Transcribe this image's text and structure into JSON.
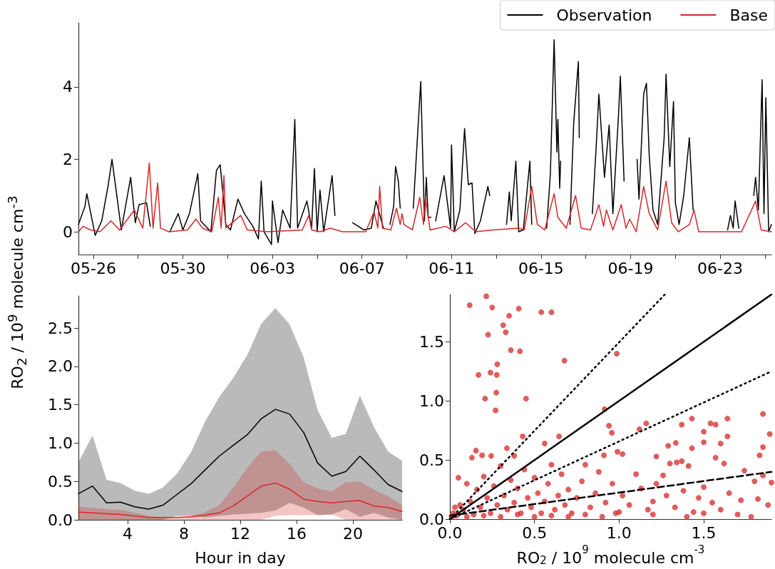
{
  "chart_data": [
    {
      "type": "line",
      "ylabel": "RO$_{2}$ / 10$^{9}$ molecule cm$^{-3}$",
      "legend": "top right",
      "xlim": [
        "--05-25T08:00",
        "--06-25T07:00"
      ],
      "ylim": [
        -0.63,
        5.77
      ],
      "yticks": [
        0,
        2,
        4
      ],
      "xticks": [
        {
          "value": "--05-26",
          "label": "05-26"
        },
        {
          "value": "--05-28",
          "label": null
        },
        {
          "value": "--05-30",
          "label": "05-30"
        },
        {
          "value": "--06-01",
          "label": null
        },
        {
          "value": "--06-03",
          "label": "06-03"
        },
        {
          "value": "--06-05",
          "label": null
        },
        {
          "value": "--06-07",
          "label": "06-07"
        },
        {
          "value": "--06-09",
          "label": null
        },
        {
          "value": "--06-11",
          "label": "06-11"
        },
        {
          "value": "--06-13",
          "label": null
        },
        {
          "value": "--06-15",
          "label": "06-15"
        },
        {
          "value": "--06-17",
          "label": null
        },
        {
          "value": "--06-19",
          "label": "06-19"
        },
        {
          "value": "--06-21",
          "label": null
        },
        {
          "value": "--06-23",
          "label": "06-23"
        },
        {
          "value": "--06-25",
          "label": null
        }
      ],
      "series": [
        {
          "name": "Observation",
          "color": "#000000",
          "x": [
            "--05-25T08:00",
            "--05-25T15:00",
            "--05-25T17:00",
            "--05-26T02:00",
            "--05-26T09:00",
            "--05-26T16:00",
            "--05-26T20:00",
            "--05-27T06:00",
            "--05-27T16:00",
            "--05-27T21:00",
            "--05-28T01:00",
            "--05-28T09:00",
            "--05-28T13:00",
            "--05-29T00:00",
            "--05-29T10:00",
            "--05-29T19:00",
            "--05-30T00:00",
            "--05-30T07:00",
            "--05-30T16:00",
            "--05-30T19:00",
            "--05-31T06:00",
            "--05-31T12:00",
            "--05-31T16:00",
            "--05-31T22:00",
            "--06-01T03:00",
            "--06-01T11:00",
            "--06-01T18:00",
            "--06-02T03:00",
            "--06-02T09:00",
            "--06-02T12:00",
            "--06-02T15:00",
            "--06-02T23:00",
            "--06-03T00:00",
            "--06-03T06:00",
            "--06-03T11:00",
            "--06-03T19:00",
            "--06-04T00:00",
            "--06-04T03:00",
            "--06-04T13:00",
            "--06-04T18:00",
            "--06-04T21:00",
            "--06-05T00:00",
            "--06-05T03:00",
            "--06-05T07:00",
            "--06-05T16:00",
            "--06-05T19:00",
            "--06-06T03:00",
            "--06-06T14:00",
            "--06-07T02:00",
            "--06-07T10:00",
            "--06-07T15:00",
            "--06-07T23:00",
            "--06-08T03:00",
            "--06-08T06:00",
            "--06-08T10:00",
            "--06-08T12:00",
            "--06-08T15:00",
            "--06-08T17:00",
            "--06-09T00:00",
            "--06-09T07:00",
            "--06-09T15:00",
            "--06-09T19:00",
            "--06-09T21:00",
            "--06-09T23:00",
            "--06-10T02:00",
            "--06-10T04:00",
            "--06-10T07:00",
            "--06-10T16:00",
            "--06-10T23:00",
            "--06-11T00:00",
            "--06-11T03:00",
            "--06-11T09:00",
            "--06-11T14:00",
            "--06-11T18:00",
            "--06-11T22:00",
            "--06-12T01:00",
            "--06-12T07:00",
            "--06-12T15:00",
            "--06-12T17:00",
            "--06-13T00:00",
            "--06-13T11:00",
            "--06-13T14:00",
            "--06-13T16:00",
            "--06-13T21:00",
            "--06-14T00:00",
            "--06-14T05:00",
            "--06-14T12:00",
            "--06-14T14:00",
            "--06-14T22:00",
            "--06-15T06:00",
            "--06-15T10:00",
            "--06-15T14:00",
            "--06-15T17:00",
            "--06-15T18:00",
            "--06-15T20:00",
            "--06-15T21:00",
            "--06-16T02:00",
            "--06-16T07:00",
            "--06-16T11:00",
            "--06-16T16:00",
            "--06-16T17:00",
            "--06-17T00:00",
            "--06-17T07:00",
            "--06-17T11:00",
            "--06-17T14:00",
            "--06-17T20:00",
            "--06-18T01:00",
            "--06-18T05:00",
            "--06-18T11:00",
            "--06-18T13:00",
            "--06-18T17:00",
            "--06-19T00:00",
            "--06-19T07:00",
            "--06-19T09:00",
            "--06-19T14:00",
            "--06-19T17:00",
            "--06-19T20:00",
            "--06-20T00:00",
            "--06-20T05:00",
            "--06-20T12:00",
            "--06-20T14:00",
            "--06-20T18:00",
            "--06-20T22:00",
            "--06-21T00:00",
            "--06-21T04:00",
            "--06-21T09:00",
            "--06-21T15:00",
            "--06-21T19:00",
            "--06-22T06:00",
            "--06-23T08:00",
            "--06-23T11:00",
            "--06-23T14:00",
            "--06-23T16:00",
            "--06-23T20:00",
            "--06-24T02:00",
            "--06-24T12:00",
            "--06-24T14:00",
            "--06-24T17:00",
            "--06-24T21:00",
            "--06-24T23:00",
            "--06-25T01:00",
            "--06-25T04:00",
            "--06-25T07:00"
          ],
          "values": [
            0.2,
            0.7,
            1.05,
            -0.1,
            0.3,
            1.3,
            2.0,
            0.05,
            1.5,
            0.25,
            0.75,
            0.8,
            0.15,
            null,
            0.0,
            0.5,
            0.05,
            0.5,
            1.6,
            0.3,
            0.0,
            1.7,
            1.85,
            0.2,
            0.05,
            0.9,
            0.5,
            0.15,
            -0.2,
            1.4,
            0.0,
            -0.35,
            0.85,
            -0.3,
            0.6,
            0.1,
            3.1,
            0.1,
            0.85,
            0.1,
            1.75,
            0.0,
            1.15,
            0.0,
            1.55,
            0.45,
            null,
            0.25,
            0.05,
            0.1,
            0.85,
            0.1,
            null,
            0.2,
            0.7,
            1.8,
            1.4,
            0.65,
            null,
            0.65,
            4.15,
            0.3,
            1.5,
            0.4,
            0.4,
            null,
            0.3,
            1.55,
            0.1,
            2.4,
            0.0,
            0.6,
            2.85,
            1.3,
            1.35,
            -0.05,
            0.3,
            1.25,
            1.0,
            null,
            0.2,
            1.1,
            0.3,
            1.95,
            0.0,
            0.05,
            1.95,
            0.2,
            null,
            0.1,
            1.6,
            5.3,
            2.2,
            3.1,
            1.2,
            1.95,
            null,
            0.2,
            3.0,
            4.7,
            2.6,
            null,
            0.5,
            2.3,
            3.8,
            1.5,
            2.95,
            0.5,
            3.2,
            4.3,
            1.4,
            null,
            2.0,
            0.9,
            3.8,
            4.1,
            2.1,
            0.6,
            0.2,
            2.6,
            4.35,
            1.8,
            3.6,
            0.8,
            0.2,
            1.0,
            2.6,
            0.6,
            null,
            0.05,
            0.45,
            0.1,
            0.85,
            0.1,
            null,
            1.0,
            1.5,
            0.6,
            4.2,
            0.5,
            3.7,
            0.0,
            0.2
          ]
        },
        {
          "name": "Base",
          "color": "#d62728",
          "x": [
            "--05-25T08:00",
            "--05-25T13:00",
            "--05-25T21:00",
            "--05-26T07:00",
            "--05-26T19:00",
            "--05-27T04:00",
            "--05-27T20:00",
            "--05-28T05:00",
            "--05-28T12:00",
            "--05-28T16:00",
            "--05-28T21:00",
            "--05-29T00:00",
            "--05-29T09:00",
            "--05-30T05:00",
            "--05-30T14:00",
            "--05-30T21:00",
            "--05-31T07:00",
            "--05-31T14:00",
            "--05-31T17:00",
            "--05-31T20:00",
            "--05-31T22:00",
            "--06-01T14:00",
            "--06-01T21:00",
            "--06-02T18:00",
            "--06-04T08:00",
            "--06-04T15:00",
            "--06-04T18:00",
            "--06-05T03:00",
            "--06-05T14:00",
            "--06-06T03:00",
            "--06-07T04:00",
            "--06-07T13:00",
            "--06-07T17:00",
            "--06-07T19:00",
            "--06-07T22:00",
            "--06-08T07:00",
            "--06-08T13:00",
            "--06-08T17:00",
            "--06-08T19:00",
            "--06-08T21:00",
            "--06-09T06:00",
            "--06-09T14:00",
            "--06-09T18:00",
            "--06-09T20:00",
            "--06-10T01:00",
            "--06-10T18:00",
            "--06-11T03:00",
            "--06-11T15:00",
            "--06-12T02:00",
            "--06-12T20:00",
            "--06-14T00:00",
            "--06-14T06:00",
            "--06-14T14:00",
            "--06-14T20:00",
            "--06-15T04:00",
            "--06-15T14:00",
            "--06-15T18:00",
            "--06-16T03:00",
            "--06-16T13:00",
            "--06-16T19:00",
            "--06-17T05:00",
            "--06-17T14:00",
            "--06-17T19:00",
            "--06-17T22:00",
            "--06-18T05:00",
            "--06-18T14:00",
            "--06-18T19:00",
            "--06-18T23:00",
            "--06-19T06:00",
            "--06-19T14:00",
            "--06-19T20:00",
            "--06-20T05:00",
            "--06-20T14:00",
            "--06-20T20:00",
            "--06-21T03:00",
            "--06-21T15:00",
            "--06-21T20:00",
            "--06-22T01:00",
            "--06-23T23:00",
            "--06-24T14:00",
            "--06-24T20:00",
            "--06-25T07:00"
          ],
          "values": [
            0.0,
            0.15,
            0.05,
            0.0,
            0.3,
            0.05,
            0.6,
            0.1,
            1.9,
            0.1,
            1.35,
            0.1,
            0.0,
            0.05,
            0.35,
            0.1,
            0.0,
            0.95,
            0.1,
            1.55,
            0.1,
            0.45,
            0.05,
            0.0,
            0.05,
            0.45,
            0.05,
            0.0,
            0.1,
            0.0,
            0.0,
            0.55,
            0.1,
            1.25,
            0.1,
            0.05,
            0.65,
            0.2,
            0.5,
            0.2,
            0.05,
            0.95,
            0.2,
            0.95,
            0.05,
            0.15,
            0.0,
            0.25,
            0.0,
            0.05,
            0.1,
            0.05,
            1.25,
            0.2,
            0.05,
            1.05,
            0.4,
            0.1,
            1.0,
            0.1,
            0.05,
            0.75,
            0.15,
            0.6,
            0.05,
            0.75,
            0.1,
            0.35,
            0.0,
            1.25,
            0.5,
            0.05,
            1.4,
            0.25,
            0.0,
            0.2,
            0.6,
            0.0,
            0.0,
            0.85,
            0.05,
            0.0
          ]
        }
      ]
    },
    {
      "type": "line",
      "xlabel": "Hour in day",
      "xlim": [
        0.5,
        23.5
      ],
      "xticks": [
        4,
        8,
        12,
        16,
        20
      ],
      "ylim": [
        0,
        2.92
      ],
      "yticks": [
        {
          "value": 0,
          "label": "0.0"
        },
        {
          "value": 0.5,
          "label": "0.5"
        },
        {
          "value": 1,
          "label": "1.0"
        },
        {
          "value": 1.5,
          "label": "1.5"
        },
        {
          "value": 2,
          "label": "2.0"
        },
        {
          "value": 2.5,
          "label": "2.5"
        }
      ],
      "x": [
        0.5,
        1.5,
        2.5,
        3.5,
        4.5,
        5.5,
        6.5,
        7.5,
        8.5,
        9.5,
        10.5,
        11.5,
        12.5,
        13.5,
        14.5,
        15.5,
        16.5,
        17.5,
        18.5,
        19.5,
        20.5,
        21.5,
        22.5,
        23.5
      ],
      "series": [
        {
          "color": "#000000",
          "values": [
            0.34,
            0.44,
            0.22,
            0.23,
            0.17,
            0.14,
            0.19,
            0.33,
            0.47,
            0.65,
            0.83,
            0.97,
            1.11,
            1.32,
            1.44,
            1.38,
            1.14,
            0.74,
            0.57,
            0.63,
            0.83,
            0.65,
            0.46,
            0.37
          ],
          "lower": [
            0,
            0,
            0,
            0,
            0,
            0,
            0,
            0.05,
            0.05,
            0.03,
            0.05,
            0.07,
            0.08,
            0.09,
            0.12,
            0.22,
            0.16,
            0.06,
            0.07,
            0.14,
            0.04,
            0.09,
            0.03,
            0
          ],
          "upper": [
            0.75,
            1.1,
            0.52,
            0.48,
            0.38,
            0.34,
            0.42,
            0.6,
            0.88,
            1.28,
            1.6,
            1.85,
            2.15,
            2.56,
            2.76,
            2.55,
            2.12,
            1.43,
            1.07,
            1.12,
            1.62,
            1.21,
            0.89,
            0.77
          ]
        },
        {
          "color": "#d62728",
          "values": [
            0.1,
            0.09,
            0.08,
            0.07,
            0.05,
            0.03,
            0.03,
            0.03,
            0.04,
            0.06,
            0.09,
            0.18,
            0.31,
            0.44,
            0.48,
            0.4,
            0.27,
            0.24,
            0.22,
            0.24,
            0.25,
            0.18,
            0.16,
            0.11
          ],
          "lower": [
            0,
            0,
            0,
            0,
            0,
            0,
            0,
            0,
            0,
            0,
            0,
            0,
            0,
            0,
            0.05,
            0.06,
            0.06,
            0.06,
            0.07,
            0,
            0,
            0,
            0,
            0
          ],
          "upper": [
            0.17,
            0.155,
            0.14,
            0.13,
            0.09,
            0.05,
            0.03,
            0.02,
            0.05,
            0.1,
            0.19,
            0.42,
            0.68,
            0.89,
            0.91,
            0.73,
            0.49,
            0.41,
            0.37,
            0.49,
            0.5,
            0.39,
            0.31,
            0.19
          ]
        }
      ]
    },
    {
      "type": "scatter",
      "xlabel": "RO$_{2}$ / 10$^{9}$ molecule cm$^{-3}$",
      "xlim": [
        0,
        1.9
      ],
      "ylim": [
        0,
        1.9
      ],
      "xticks": [
        {
          "value": 0,
          "label": "0.0"
        },
        {
          "value": 0.5,
          "label": "0.5"
        },
        {
          "value": 1,
          "label": "1.0"
        },
        {
          "value": 1.5,
          "label": "1.5"
        }
      ],
      "yticks": [
        {
          "value": 0,
          "label": "0.0"
        },
        {
          "value": 0.5,
          "label": "0.5"
        },
        {
          "value": 1,
          "label": "1.0"
        },
        {
          "value": 1.5,
          "label": "1.5"
        }
      ],
      "series": [
        {
          "type": "scatter",
          "marker": "circle",
          "color": "#d62728",
          "x": [
            0.117,
            0.215,
            0.25,
            0.407,
            0.54,
            0.6,
            0.35,
            0.315,
            0.33,
            0.226,
            0.36,
            0.414,
            0.677,
            0.986,
            0.28,
            0.169,
            0.24,
            0.277,
            0.274,
            0.208,
            0.45,
            0.27,
            0.914,
            1.85,
            1.64,
            1.43,
            1.37,
            1.16,
            1.54,
            1.57,
            0.94,
            1.12,
            0.957,
            1.5,
            1.89,
            1.64,
            0.645,
            0.43,
            1.29,
            1.85,
            0.56,
            1.335,
            1.5,
            1.6,
            1.43,
            1.02,
            1.22,
            1.37,
            0.99,
            0.337,
            0.19,
            0.154,
            0.244,
            0.38,
            0.91,
            1.83,
            0.13,
            1.3,
            1.26,
            1.34,
            1.41,
            1.57,
            1.62,
            1.74,
            1.8,
            1.85,
            1.9,
            1.88,
            1.82,
            1.72,
            1.65,
            1.6,
            1.55,
            1.5,
            1.47,
            1.44,
            1.4,
            1.38,
            1.33,
            1.28,
            1.22,
            1.2,
            1.17,
            1.13,
            1.1,
            1.06,
            1.02,
            0.98,
            0.96,
            0.92,
            0.88,
            0.86,
            0.83,
            0.8,
            0.78,
            0.75,
            0.72,
            0.7,
            0.68,
            0.66,
            0.64,
            0.62,
            0.6,
            0.58,
            0.56,
            0.54,
            0.52,
            0.5,
            0.48,
            0.46,
            0.44,
            0.42,
            0.4,
            0.38,
            0.36,
            0.34,
            0.32,
            0.3,
            0.28,
            0.26,
            0.24,
            0.22,
            0.2,
            0.18,
            0.16,
            0.14,
            0.12,
            0.1,
            0.08,
            0.06,
            0.05,
            0.04,
            0.03,
            0.02,
            0.01,
            0.1,
            0.2,
            0.3,
            0.4,
            0.5,
            0.6,
            0.7,
            0.8,
            0.9,
            1.0,
            1.2,
            1.5,
            1.7,
            1.78
          ],
          "values": [
            1.81,
            1.885,
            1.79,
            1.78,
            1.75,
            1.75,
            1.72,
            1.64,
            1.58,
            1.56,
            1.43,
            1.42,
            1.34,
            1.4,
            1.31,
            1.22,
            1.24,
            1.22,
            1.07,
            1.02,
            1.02,
            0.92,
            0.93,
            0.89,
            0.85,
            0.85,
            0.8,
            0.81,
            0.81,
            0.8,
            0.79,
            0.76,
            0.73,
            0.74,
            0.72,
            0.7,
            0.7,
            0.7,
            0.62,
            0.61,
            0.64,
            0.645,
            0.65,
            0.64,
            0.6,
            0.55,
            0.53,
            0.49,
            0.57,
            0.6,
            0.54,
            0.58,
            0.535,
            0.535,
            0.54,
            0.54,
            0.52,
            0.47,
            0.37,
            0.48,
            0.45,
            0.52,
            0.47,
            0.41,
            0.32,
            0.37,
            0.31,
            0.12,
            0.17,
            0.16,
            0.22,
            0.08,
            0.14,
            0.27,
            0.18,
            0.06,
            0.02,
            0.24,
            0.1,
            0.2,
            0.3,
            0.15,
            0.08,
            0.26,
            0.38,
            0.12,
            0.2,
            0.05,
            0.3,
            0.14,
            0.4,
            0.22,
            0.1,
            0.46,
            0.32,
            0.18,
            0.05,
            0.25,
            0.12,
            0.38,
            0.2,
            0.08,
            0.46,
            0.3,
            0.15,
            0.05,
            0.22,
            0.35,
            0.1,
            0.18,
            0.42,
            0.05,
            0.26,
            0.14,
            0.33,
            0.08,
            0.2,
            0.45,
            0.12,
            0.28,
            0.05,
            0.18,
            0.36,
            0.1,
            0.25,
            0.04,
            0.15,
            0.3,
            0.08,
            0.12,
            0.35,
            0.03,
            0.1,
            0.05,
            0.02,
            0.02,
            0.03,
            0.02,
            0.04,
            0.02,
            0.03,
            0.02,
            0.04,
            0.02,
            0.06,
            0.04,
            0.05,
            0.04,
            0.02
          ]
        },
        {
          "type": "line",
          "color": "#000000",
          "line_style": "solid",
          "x": [
            0,
            1.9
          ],
          "values": [
            0,
            1.9
          ]
        },
        {
          "type": "line",
          "color": "#000000",
          "line_style": "dotted",
          "x": [
            0,
            1.27
          ],
          "values": [
            0,
            1.9
          ]
        },
        {
          "type": "line",
          "color": "#000000",
          "line_style": "dotted",
          "x": [
            0,
            1.9
          ],
          "values": [
            0,
            1.25
          ]
        },
        {
          "type": "line",
          "color": "#000000",
          "line_style": "dashed",
          "x": [
            0,
            1.9
          ],
          "values": [
            0.03,
            0.4
          ]
        }
      ]
    }
  ]
}
